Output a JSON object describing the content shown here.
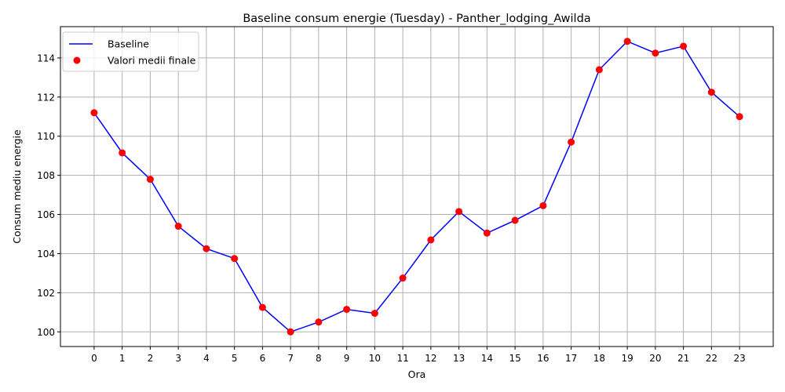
{
  "chart_data": {
    "type": "line",
    "title": "Baseline consum energie (Tuesday) - Panther_lodging_Awilda",
    "xlabel": "Ora",
    "ylabel": "Consum mediu energie",
    "x": [
      0,
      1,
      2,
      3,
      4,
      5,
      6,
      7,
      8,
      9,
      10,
      11,
      12,
      13,
      14,
      15,
      16,
      17,
      18,
      19,
      20,
      21,
      22,
      23
    ],
    "x_tick_labels": [
      "0",
      "1",
      "2",
      "3",
      "4",
      "5",
      "6",
      "7",
      "8",
      "9",
      "10",
      "11",
      "12",
      "13",
      "14",
      "15",
      "16",
      "17",
      "18",
      "19",
      "20",
      "21",
      "22",
      "23"
    ],
    "xlim": [
      -1.2,
      24.2
    ],
    "ylim": [
      99.25,
      115.6
    ],
    "y_ticks": [
      100,
      102,
      104,
      106,
      108,
      110,
      112,
      114
    ],
    "y_tick_labels": [
      "100",
      "102",
      "104",
      "106",
      "108",
      "110",
      "112",
      "114"
    ],
    "grid": true,
    "legend_position": "top-left",
    "series": [
      {
        "name": "Baseline",
        "kind": "line",
        "color": "#0000ff",
        "values": [
          111.2,
          109.15,
          107.8,
          105.4,
          104.25,
          103.75,
          101.25,
          100.0,
          100.5,
          101.15,
          100.95,
          102.75,
          104.7,
          106.15,
          105.05,
          105.7,
          106.45,
          109.7,
          113.4,
          114.85,
          114.25,
          114.6,
          112.25,
          111.0
        ]
      },
      {
        "name": "Valori medii finale",
        "kind": "scatter",
        "color": "#ff0000",
        "values": [
          111.2,
          109.15,
          107.8,
          105.4,
          104.25,
          103.75,
          101.25,
          100.0,
          100.5,
          101.15,
          100.95,
          102.75,
          104.7,
          106.15,
          105.05,
          105.7,
          106.45,
          109.7,
          113.4,
          114.85,
          114.25,
          114.6,
          112.25,
          111.0
        ]
      }
    ]
  }
}
